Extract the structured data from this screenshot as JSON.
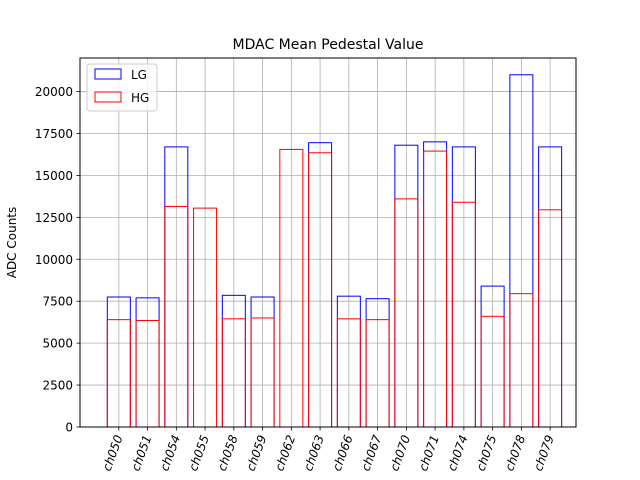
{
  "chart_data": {
    "type": "bar",
    "title": "MDAC Mean Pedestal Value",
    "xlabel": "",
    "ylabel": "ADC Counts",
    "ylim": [
      0,
      22000
    ],
    "yticks": [
      0,
      2500,
      5000,
      7500,
      10000,
      12500,
      15000,
      17500,
      20000
    ],
    "grid": true,
    "legend_position": "top-left",
    "categories": [
      "ch050",
      "ch051",
      "ch054",
      "ch055",
      "ch058",
      "ch059",
      "ch062",
      "ch063",
      "ch066",
      "ch067",
      "ch070",
      "ch071",
      "ch074",
      "ch075",
      "ch078",
      "ch079"
    ],
    "series": [
      {
        "name": "LG",
        "color": "#0000ff",
        "values": [
          7750,
          7700,
          16700,
          null,
          7850,
          7750,
          null,
          16950,
          7800,
          7650,
          16800,
          17000,
          16700,
          8400,
          21000,
          16700
        ]
      },
      {
        "name": "HG",
        "color": "#ff0000",
        "values": [
          6400,
          6350,
          13150,
          13050,
          6450,
          6500,
          16550,
          16350,
          6450,
          6400,
          13600,
          16450,
          13400,
          6600,
          7950,
          12950
        ]
      }
    ]
  }
}
